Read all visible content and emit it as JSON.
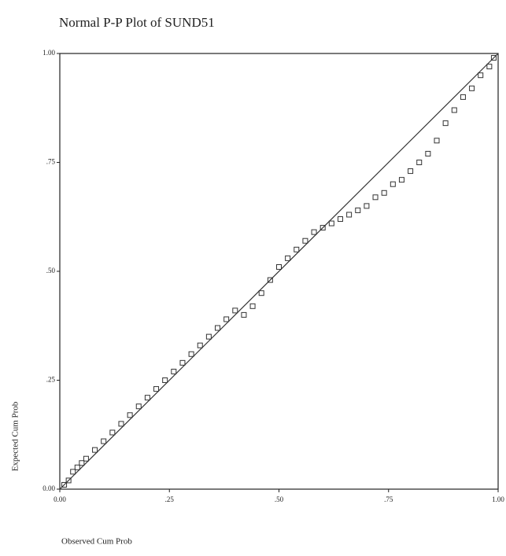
{
  "chart_data": {
    "type": "scatter",
    "title": "Normal P-P Plot of SUND51",
    "xlabel": "Observed Cum Prob",
    "ylabel": "Expected Cum Prob",
    "xlim": [
      0,
      1
    ],
    "ylim": [
      0,
      1
    ],
    "xticks": [
      {
        "value": 0,
        "label": "0.00"
      },
      {
        "value": 0.25,
        "label": ".25"
      },
      {
        "value": 0.5,
        "label": ".50"
      },
      {
        "value": 0.75,
        "label": ".75"
      },
      {
        "value": 1,
        "label": "1.00"
      }
    ],
    "yticks": [
      {
        "value": 0,
        "label": "0.00"
      },
      {
        "value": 0.25,
        "label": ".25"
      },
      {
        "value": 0.5,
        "label": ".50"
      },
      {
        "value": 0.75,
        "label": ".75"
      },
      {
        "value": 1,
        "label": "1.00"
      }
    ],
    "color": "#333333",
    "x": [
      0.01,
      0.02,
      0.03,
      0.04,
      0.05,
      0.06,
      0.08,
      0.1,
      0.12,
      0.14,
      0.16,
      0.18,
      0.2,
      0.22,
      0.24,
      0.26,
      0.28,
      0.3,
      0.32,
      0.34,
      0.36,
      0.38,
      0.4,
      0.42,
      0.44,
      0.46,
      0.48,
      0.5,
      0.52,
      0.54,
      0.56,
      0.58,
      0.6,
      0.62,
      0.64,
      0.66,
      0.68,
      0.7,
      0.72,
      0.74,
      0.76,
      0.78,
      0.8,
      0.82,
      0.84,
      0.86,
      0.88,
      0.9,
      0.92,
      0.94,
      0.96,
      0.98,
      0.99
    ],
    "values": [
      0.01,
      0.02,
      0.04,
      0.05,
      0.06,
      0.07,
      0.09,
      0.11,
      0.13,
      0.15,
      0.17,
      0.19,
      0.21,
      0.23,
      0.25,
      0.27,
      0.29,
      0.31,
      0.33,
      0.35,
      0.37,
      0.39,
      0.41,
      0.4,
      0.42,
      0.45,
      0.48,
      0.51,
      0.53,
      0.55,
      0.57,
      0.59,
      0.6,
      0.61,
      0.62,
      0.63,
      0.64,
      0.65,
      0.67,
      0.68,
      0.7,
      0.71,
      0.73,
      0.75,
      0.77,
      0.8,
      0.84,
      0.87,
      0.9,
      0.92,
      0.95,
      0.97,
      0.99
    ]
  }
}
